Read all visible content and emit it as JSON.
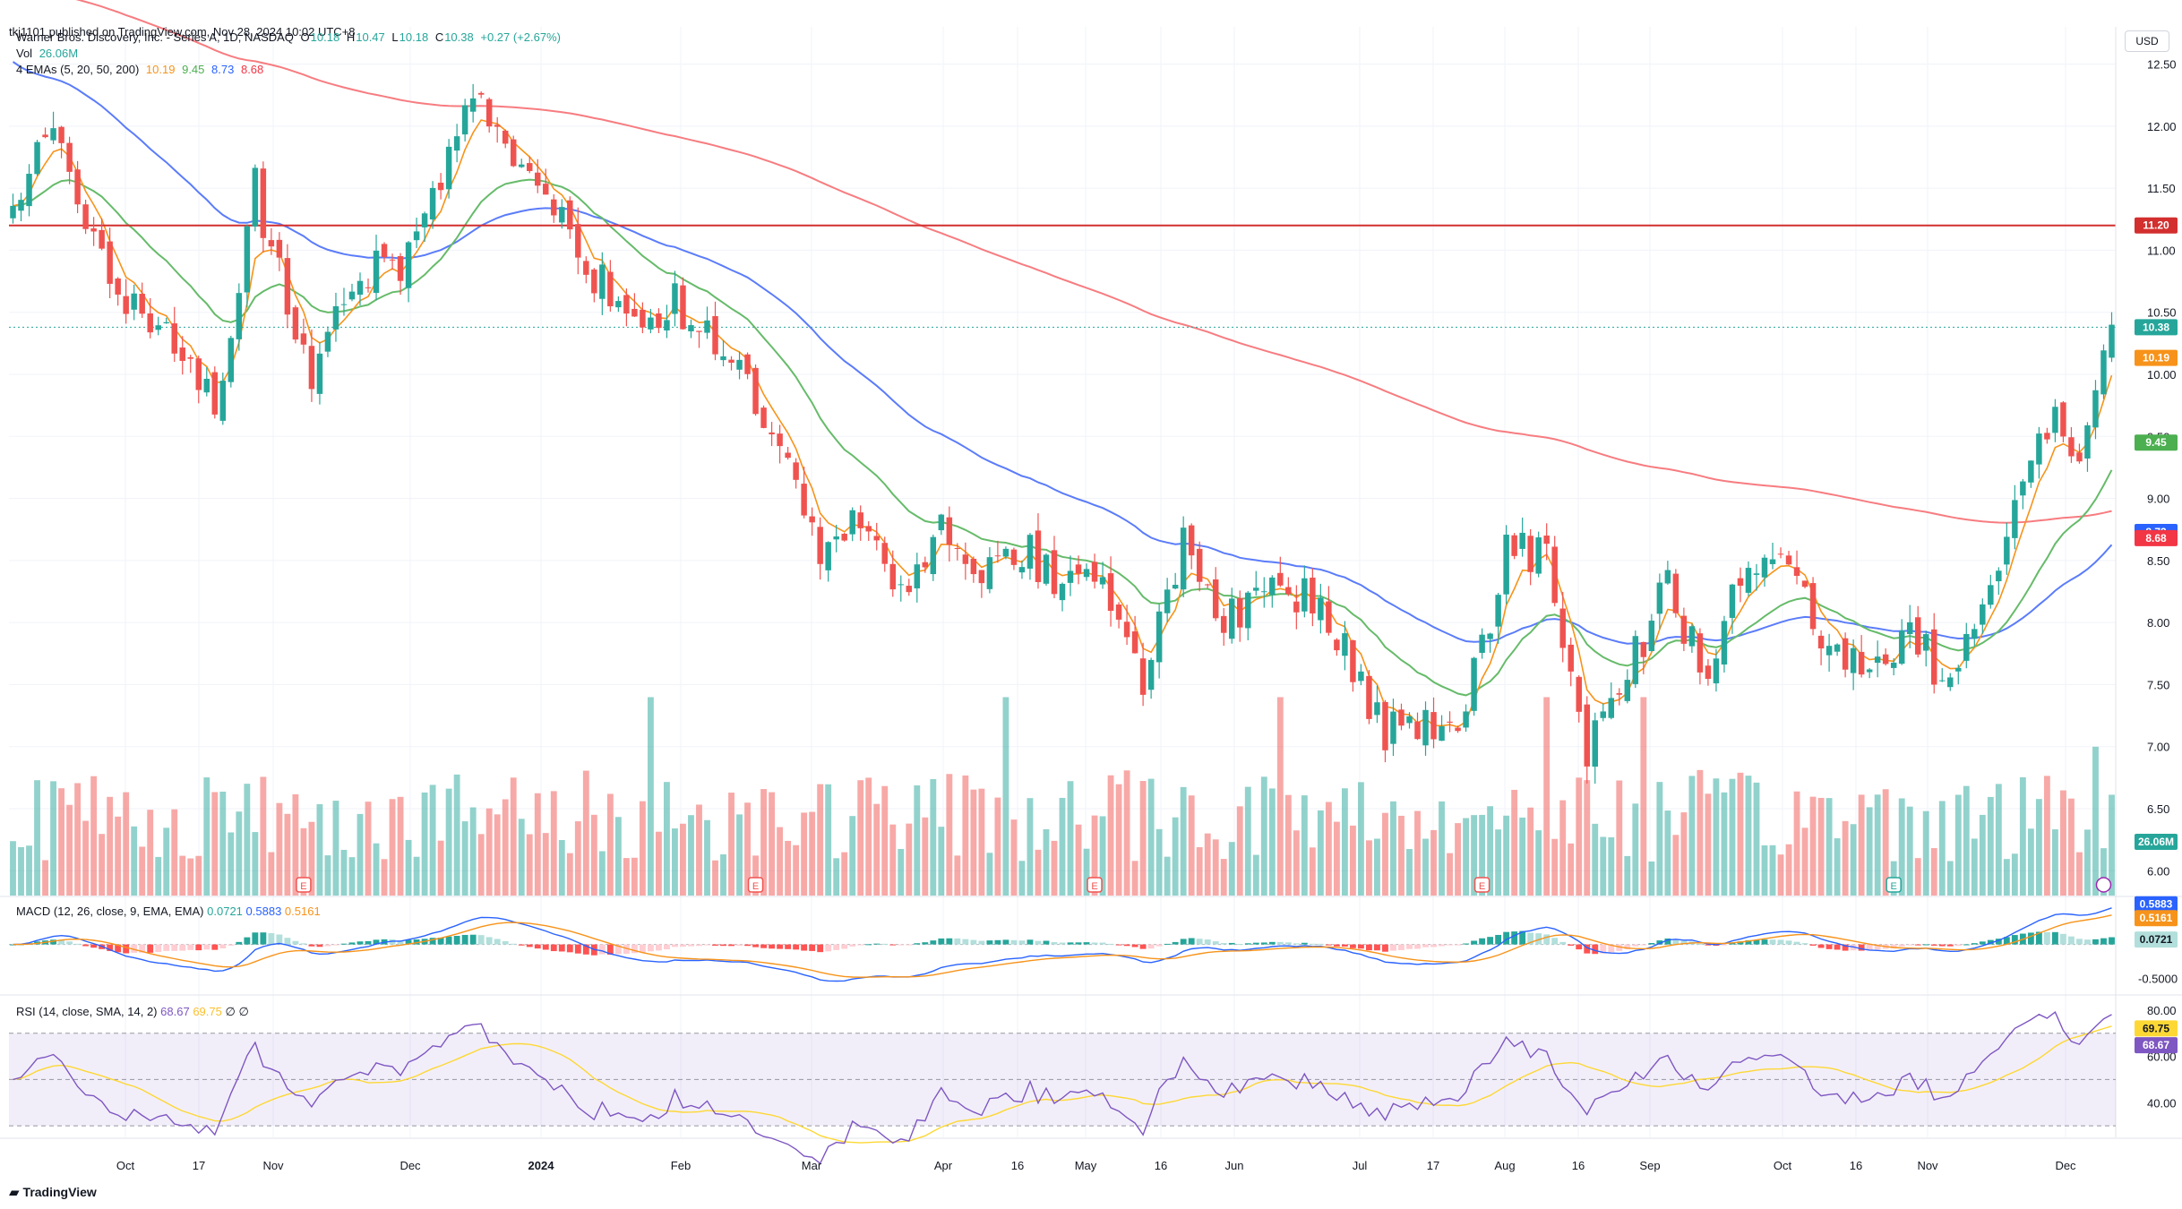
{
  "published": "tkj1101 published on TradingView.com, Nov 28, 2024 10:02 UTC+8",
  "legend": {
    "symbol": "Warner Bros. Discovery, Inc. - Series A, 1D, NASDAQ",
    "ohlc": {
      "o_label": "O",
      "o": "10.18",
      "h_label": "H",
      "h": "10.47",
      "l_label": "L",
      "l": "10.18",
      "c_label": "C",
      "c": "10.38",
      "change": "+0.27 (+2.67%)"
    },
    "vol_label": "Vol",
    "vol_value": "26.06M",
    "ema_label": "4 EMAs (5, 20, 50, 200)",
    "ema_values": [
      "10.19",
      "9.45",
      "8.73",
      "8.68"
    ]
  },
  "macd_legend": {
    "label": "MACD (12, 26, close, 9, EMA, EMA)",
    "values": [
      "0.0721",
      "0.5883",
      "0.5161"
    ]
  },
  "rsi_legend": {
    "label": "RSI (14, close, SMA, 14, 2)",
    "values": [
      "68.67",
      "69.75",
      "∅",
      "∅"
    ]
  },
  "currency": "USD",
  "brand": "TradingView",
  "colors": {
    "up": "#26a69a",
    "down": "#ef5350",
    "ema5": "#f7931a",
    "ema20": "#4caf50",
    "ema50": "#2962ff",
    "ema200": "#f23645",
    "hline": "#d32f2f",
    "macd": "#2962ff",
    "signal": "#f7931a",
    "rsi": "#7e57c2",
    "rsi_sma": "#fbc02d"
  },
  "chart_data": {
    "type": "candlestick",
    "price_axis": {
      "ticks": [
        "12.50",
        "12.00",
        "11.50",
        "11.00",
        "10.50",
        "10.00",
        "9.50",
        "9.00",
        "8.50",
        "8.00",
        "7.50",
        "7.00",
        "6.50",
        "6.00"
      ],
      "range": [
        5.8,
        12.8
      ]
    },
    "x_axis_labels": [
      "Oct",
      "17",
      "Nov",
      "Dec",
      "2024",
      "Feb",
      "Mar",
      "Apr",
      "16",
      "May",
      "16",
      "Jun",
      "Jul",
      "17",
      "Aug",
      "16",
      "Sep",
      "Oct",
      "16",
      "Nov",
      "Dec"
    ],
    "horizontal_line": {
      "value": 11.2,
      "label": "11.20"
    },
    "last_price": {
      "value": 10.38,
      "label": "10.38"
    },
    "ema_badges": [
      {
        "value": 10.19,
        "label": "10.19"
      },
      {
        "value": 9.45,
        "label": "9.45"
      },
      {
        "value": 8.73,
        "label": "8.73"
      },
      {
        "value": 8.68,
        "label": "8.68"
      }
    ],
    "volume_badge": "26.06M",
    "earnings_marker": "E",
    "close_anchors": [
      [
        0,
        11.3
      ],
      [
        5,
        12.0
      ],
      [
        10,
        11.1
      ],
      [
        15,
        10.5
      ],
      [
        20,
        10.2
      ],
      [
        25,
        9.7
      ],
      [
        30,
        11.5
      ],
      [
        33,
        10.8
      ],
      [
        37,
        9.9
      ],
      [
        42,
        10.8
      ],
      [
        48,
        10.9
      ],
      [
        54,
        11.8
      ],
      [
        58,
        12.3
      ],
      [
        62,
        11.6
      ],
      [
        67,
        11.3
      ],
      [
        72,
        10.8
      ],
      [
        77,
        10.4
      ],
      [
        82,
        10.6
      ],
      [
        87,
        10.2
      ],
      [
        92,
        9.8
      ],
      [
        96,
        9.3
      ],
      [
        100,
        8.6
      ],
      [
        105,
        8.8
      ],
      [
        110,
        8.3
      ],
      [
        115,
        8.7
      ],
      [
        120,
        8.4
      ],
      [
        125,
        8.6
      ],
      [
        130,
        8.3
      ],
      [
        135,
        8.4
      ],
      [
        140,
        7.5
      ],
      [
        145,
        8.6
      ],
      [
        150,
        8.0
      ],
      [
        155,
        8.3
      ],
      [
        160,
        8.2
      ],
      [
        165,
        7.8
      ],
      [
        170,
        7.1
      ],
      [
        175,
        7.2
      ],
      [
        180,
        7.3
      ],
      [
        185,
        8.6
      ],
      [
        190,
        8.5
      ],
      [
        195,
        7.0
      ],
      [
        200,
        7.6
      ],
      [
        205,
        8.3
      ],
      [
        210,
        7.5
      ],
      [
        215,
        8.6
      ],
      [
        220,
        8.4
      ],
      [
        225,
        7.8
      ],
      [
        230,
        7.6
      ],
      [
        235,
        7.9
      ],
      [
        240,
        7.5
      ],
      [
        245,
        8.3
      ],
      [
        250,
        9.2
      ],
      [
        253,
        9.8
      ],
      [
        256,
        9.3
      ],
      [
        260,
        10.4
      ]
    ],
    "volume_range": [
      5,
      65
    ],
    "macd_axis": {
      "ticks": [
        "-0.5000"
      ],
      "range": [
        -0.7,
        0.65
      ]
    },
    "rsi_axis": {
      "ticks": [
        "80.00",
        "60.00",
        "40.00"
      ],
      "range": [
        25,
        85
      ],
      "bands": [
        70,
        30
      ]
    }
  }
}
